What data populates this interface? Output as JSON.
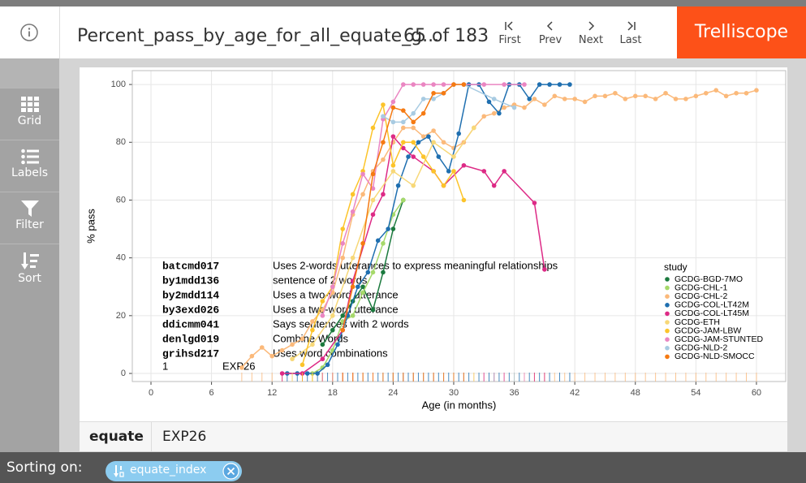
{
  "header": {
    "title": "Percent_pass_by_age_for_all_equate_g...",
    "counter": "65 of 183",
    "nav": [
      "First",
      "Prev",
      "Next",
      "Last"
    ],
    "brand": "Trelliscope"
  },
  "sidebar": [
    "Grid",
    "Labels",
    "Filter",
    "Sort"
  ],
  "panel_label": {
    "name": "equate",
    "value": "EXP26"
  },
  "footer": {
    "label": "Sorting on:",
    "sort": "equate_index"
  },
  "chart_data": {
    "type": "line",
    "xlabel": "Age (in months)",
    "ylabel": "% pass",
    "xlim": [
      -1.85,
      62.9
    ],
    "ylim": [
      -2.8,
      104.8
    ],
    "xticks": [
      0,
      6,
      12,
      18,
      24,
      30,
      36,
      42,
      48,
      54,
      60
    ],
    "yticks": [
      0,
      20,
      40,
      60,
      80,
      100
    ],
    "grid": true,
    "legend": "right",
    "legend_title": "study",
    "series": [
      {
        "name": "GCDG-BGD-7MO",
        "color": "#1b7a3e",
        "x": [
          17,
          18,
          19,
          20,
          21,
          22,
          23,
          24,
          25
        ],
        "values": [
          10,
          15,
          20,
          25,
          30,
          22,
          35,
          50,
          60
        ]
      },
      {
        "name": "GCDG-CHL-1",
        "color": "#a6d96a",
        "x": [
          16,
          17,
          18,
          19,
          20,
          21,
          22,
          23,
          24,
          25
        ],
        "values": [
          0,
          2,
          8,
          18,
          20,
          28,
          35,
          45,
          55,
          60
        ]
      },
      {
        "name": "GCDG-CHL-2",
        "color": "#fbb97a",
        "x": [
          9,
          10,
          11,
          12,
          13,
          14,
          15,
          16,
          17,
          18,
          19,
          20,
          21,
          22,
          23,
          24,
          25,
          26,
          27,
          28,
          29,
          30,
          31,
          32,
          33,
          34,
          35,
          36,
          37,
          38,
          39,
          40,
          41,
          42,
          43,
          44,
          45,
          46,
          47,
          48,
          49,
          50,
          51,
          52,
          53,
          54,
          55,
          56,
          57,
          58,
          59,
          60
        ],
        "values": [
          2,
          6,
          9,
          6,
          8,
          10,
          12,
          18,
          22,
          28,
          40,
          55,
          62,
          70,
          74,
          80,
          85,
          85,
          82,
          84,
          80,
          78,
          80,
          85,
          89,
          90,
          92,
          93,
          92,
          95,
          93,
          96,
          95,
          95,
          94,
          96,
          96,
          97,
          95,
          96,
          96,
          95,
          97,
          95,
          95,
          96,
          97,
          98,
          96,
          97,
          97,
          98
        ]
      },
      {
        "name": "GCDG-COL-LT42M",
        "color": "#1f6fb0",
        "x": [
          13.5,
          14.5,
          15.5,
          16.5,
          17.5,
          18.5,
          19.5,
          20.5,
          21.5,
          22.5,
          23.5,
          24.5,
          25.5,
          26.5,
          27.5,
          28.5,
          29.5,
          30.5,
          31.5,
          32.5,
          33.5,
          34.5,
          35.5,
          36.5,
          37.5,
          38.5,
          39.5,
          40.5,
          41.5
        ],
        "values": [
          0,
          0,
          0,
          0,
          3,
          10,
          20,
          30,
          35,
          46,
          50,
          65,
          75,
          80,
          82,
          75,
          70,
          83,
          100,
          100,
          94,
          90,
          100,
          100,
          95,
          100,
          100,
          100,
          100
        ]
      },
      {
        "name": "GCDG-COL-LT45M",
        "color": "#dd2a86",
        "x": [
          13,
          15,
          17,
          19,
          20,
          22,
          23,
          24,
          25,
          26,
          28,
          29,
          31,
          33,
          34,
          35,
          38,
          39
        ],
        "values": [
          0,
          0,
          5,
          15,
          32,
          55,
          62,
          82,
          78,
          75,
          70,
          65,
          72,
          70,
          65,
          70,
          59,
          36
        ]
      },
      {
        "name": "GCDG-ETH",
        "color": "#f7d878",
        "x": [
          14,
          16,
          18,
          20,
          22,
          24,
          26,
          28,
          30,
          32
        ],
        "values": [
          5,
          10,
          20,
          40,
          60,
          70,
          65,
          80,
          75,
          85
        ]
      },
      {
        "name": "GCDG-JAM-LBW",
        "color": "#fcc42a",
        "x": [
          15,
          16,
          17,
          18,
          19,
          20,
          21,
          22,
          23,
          24,
          25,
          26,
          27,
          28,
          29,
          30,
          31
        ],
        "values": [
          3,
          15,
          25,
          30,
          50,
          62,
          70,
          85,
          93,
          72,
          80,
          80,
          75,
          70,
          65,
          70,
          60
        ]
      },
      {
        "name": "GCDG-JAM-STUNTED",
        "color": "#ea86c2",
        "x": [
          17,
          18,
          19,
          20,
          21,
          22,
          23,
          24,
          25,
          26,
          27,
          28,
          29,
          30,
          31,
          33,
          35,
          37
        ],
        "values": [
          20,
          30,
          45,
          56,
          69,
          64,
          88,
          94,
          100,
          100,
          100,
          100,
          100,
          100,
          100,
          100,
          100,
          100
        ]
      },
      {
        "name": "GCDG-NLD-2",
        "color": "#a8cbe2",
        "x": [
          23,
          24,
          25,
          26,
          27,
          28,
          29,
          30,
          31,
          34,
          36
        ],
        "values": [
          89,
          87,
          87,
          90,
          95,
          95,
          97,
          100,
          100,
          95,
          92
        ]
      },
      {
        "name": "GCDG-NLD-SMOCC",
        "color": "#f57a12",
        "x": [
          19,
          20,
          21,
          22,
          23,
          24,
          25,
          26,
          27,
          28,
          29,
          30,
          31
        ],
        "values": [
          15,
          30,
          45,
          69,
          80,
          92,
          91,
          87,
          90,
          97,
          97,
          100,
          100
        ]
      }
    ],
    "annotations": [
      {
        "code": "batcmd017",
        "text": "Uses 2-words utterances to express meaningful relationships"
      },
      {
        "code": "by1mdd136",
        "text": "sentence of 2 words"
      },
      {
        "code": "by2mdd114",
        "text": "Uses a two-word utterance"
      },
      {
        "code": "by3exd026",
        "text": "Uses a two-word utterance"
      },
      {
        "code": "ddicmm041",
        "text": "Says sentences with 2 words"
      },
      {
        "code": "denlgd019",
        "text": "Combine Words"
      },
      {
        "code": "grihsd217",
        "text": "Uses word combinations"
      }
    ],
    "annotation_footer": {
      "index": "1",
      "label": "EXP26"
    }
  }
}
